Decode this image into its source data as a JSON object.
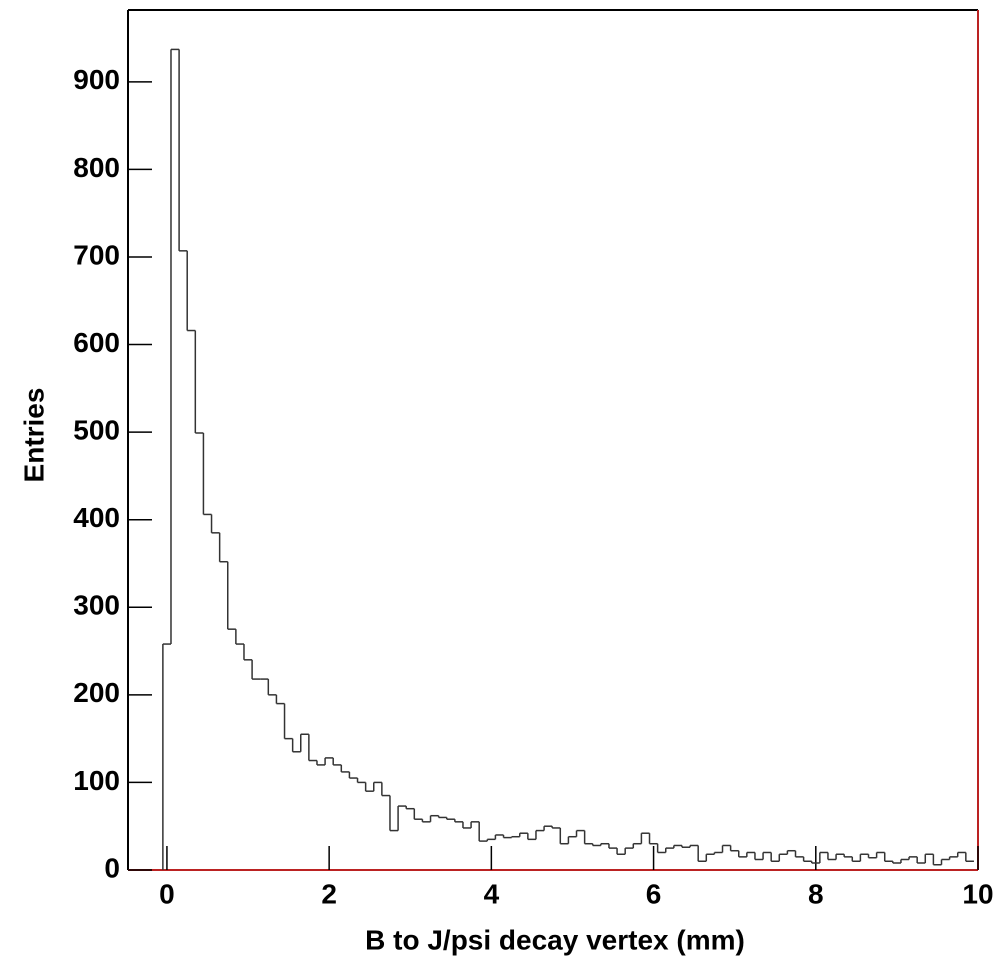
{
  "chart_data": {
    "type": "histogram",
    "x_label": "B to J/psi decay vertex (mm)",
    "y_label": "Entries",
    "bins": [
      -0.05,
      0.05,
      0.15,
      0.25,
      0.35,
      0.45,
      0.55,
      0.65,
      0.75,
      0.85,
      0.95,
      1.05,
      1.15,
      1.25,
      1.35,
      1.45,
      1.55,
      1.65,
      1.75,
      1.85,
      1.95,
      2.05,
      2.15,
      2.25,
      2.35,
      2.45,
      2.55,
      2.65,
      2.75,
      2.85,
      2.95,
      3.05,
      3.15,
      3.25,
      3.35,
      3.45,
      3.55,
      3.65,
      3.75,
      3.85,
      3.95,
      4.05,
      4.15,
      4.25,
      4.35,
      4.45,
      4.55,
      4.65,
      4.75,
      4.85,
      4.95,
      5.05,
      5.15,
      5.25,
      5.35,
      5.45,
      5.55,
      5.65,
      5.75,
      5.85,
      5.95,
      6.05,
      6.15,
      6.25,
      6.35,
      6.45,
      6.55,
      6.65,
      6.75,
      6.85,
      6.95,
      7.05,
      7.15,
      7.25,
      7.35,
      7.45,
      7.55,
      7.65,
      7.75,
      7.85,
      7.95,
      8.05,
      8.15,
      8.25,
      8.35,
      8.45,
      8.55,
      8.65,
      8.75,
      8.85,
      8.95,
      9.05,
      9.15,
      9.25,
      9.35,
      9.45,
      9.55,
      9.65,
      9.75,
      9.85,
      9.95
    ],
    "values": [
      258,
      937,
      707,
      616,
      499,
      406,
      385,
      352,
      275,
      258,
      240,
      218,
      218,
      200,
      190,
      150,
      135,
      155,
      125,
      120,
      128,
      120,
      112,
      105,
      100,
      90,
      100,
      85,
      45,
      73,
      70,
      58,
      55,
      62,
      60,
      58,
      55,
      48,
      55,
      33,
      35,
      40,
      37,
      38,
      42,
      35,
      45,
      50,
      48,
      30,
      38,
      45,
      30,
      28,
      30,
      25,
      18,
      25,
      30,
      42,
      30,
      20,
      25,
      28,
      26,
      28,
      10,
      18,
      20,
      28,
      22,
      15,
      20,
      12,
      20,
      10,
      18,
      22,
      15,
      10,
      8,
      20,
      12,
      18,
      15,
      10,
      18,
      14,
      20,
      10,
      8,
      12,
      15,
      8,
      18,
      6,
      12,
      15,
      20,
      10
    ],
    "color": "#333333",
    "xlim": [
      -0.48,
      10
    ],
    "xticks": [
      0,
      2,
      4,
      6,
      8,
      10
    ],
    "ylim": [
      0,
      982
    ],
    "yticks": [
      0,
      100,
      200,
      300,
      400,
      500,
      600,
      700,
      800,
      900
    ]
  }
}
